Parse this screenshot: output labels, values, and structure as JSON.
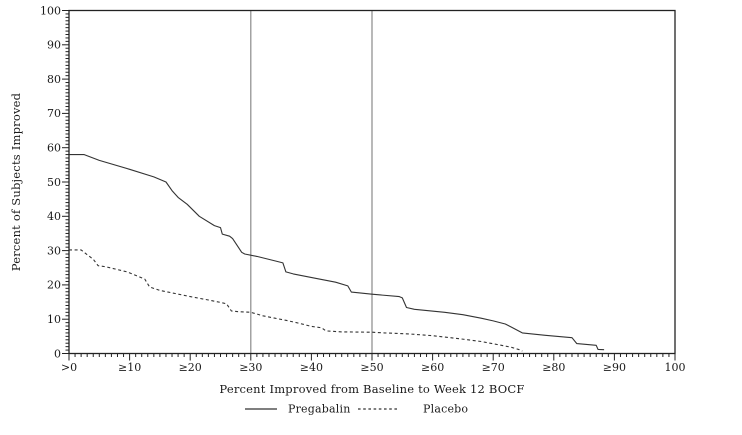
{
  "chart_data": {
    "type": "line",
    "title": "",
    "xlabel": "Percent Improved from Baseline to Week 12 BOCF",
    "ylabel": "Percent of Subjects Improved",
    "xlim": [
      0,
      100
    ],
    "ylim": [
      0,
      100
    ],
    "grid": false,
    "legend_position": "bottom-center",
    "x_tick_values": [
      0,
      10,
      20,
      30,
      40,
      50,
      60,
      70,
      80,
      90,
      100
    ],
    "x_tick_labels": [
      ">0",
      "≥10",
      "≥20",
      "≥30",
      "≥40",
      "≥50",
      "≥60",
      "≥70",
      "≥80",
      "≥90",
      "100"
    ],
    "y_tick_values": [
      0,
      10,
      20,
      30,
      40,
      50,
      60,
      70,
      80,
      90,
      100
    ],
    "minor_tick_step_x": 1,
    "minor_tick_step_y": 1,
    "reference_lines_x": [
      30,
      50
    ],
    "colors": {
      "line": "#333333",
      "reference_line": "#8a8a8a",
      "frame": "#222222",
      "text": "#1a1a1a"
    },
    "series": [
      {
        "name": "Pregabalin",
        "style": "solid",
        "points": [
          [
            0,
            58
          ],
          [
            2.5,
            58
          ],
          [
            5,
            56.3
          ],
          [
            10,
            53.7
          ],
          [
            14,
            51.5
          ],
          [
            16,
            50
          ],
          [
            17,
            47.5
          ],
          [
            18,
            45.5
          ],
          [
            19.5,
            43.5
          ],
          [
            21.5,
            40
          ],
          [
            24,
            37.3
          ],
          [
            25,
            36.7
          ],
          [
            25.3,
            34.8
          ],
          [
            26.5,
            34.2
          ],
          [
            27,
            33.5
          ],
          [
            28.5,
            29.5
          ],
          [
            29,
            29
          ],
          [
            31,
            28.3
          ],
          [
            34,
            27
          ],
          [
            35.3,
            26.4
          ],
          [
            35.8,
            23.8
          ],
          [
            37,
            23.2
          ],
          [
            41,
            21.8
          ],
          [
            44,
            20.8
          ],
          [
            46,
            19.7
          ],
          [
            46.6,
            17.9
          ],
          [
            50,
            17.3
          ],
          [
            54.5,
            16.6
          ],
          [
            55,
            16.2
          ],
          [
            55.7,
            13.4
          ],
          [
            57,
            12.9
          ],
          [
            62,
            12
          ],
          [
            65,
            11.3
          ],
          [
            68,
            10.3
          ],
          [
            70,
            9.5
          ],
          [
            72,
            8.6
          ],
          [
            73,
            7.7
          ],
          [
            74.8,
            6
          ],
          [
            78.6,
            5.3
          ],
          [
            83,
            4.6
          ],
          [
            83.8,
            2.9
          ],
          [
            87,
            2.4
          ],
          [
            87.3,
            1.2
          ],
          [
            88.3,
            1.1
          ]
        ]
      },
      {
        "name": "Placebo",
        "style": "dashed",
        "points": [
          [
            0,
            30.2
          ],
          [
            2,
            30.2
          ],
          [
            3,
            28.8
          ],
          [
            4,
            27.5
          ],
          [
            4.8,
            25.6
          ],
          [
            6,
            25.3
          ],
          [
            9.6,
            23.8
          ],
          [
            12.5,
            21.7
          ],
          [
            13.3,
            19.4
          ],
          [
            15,
            18.4
          ],
          [
            17.5,
            17.5
          ],
          [
            20,
            16.6
          ],
          [
            23,
            15.6
          ],
          [
            25,
            14.9
          ],
          [
            26,
            14.5
          ],
          [
            26.8,
            12.4
          ],
          [
            28,
            12.2
          ],
          [
            30,
            12
          ],
          [
            32,
            11
          ],
          [
            34,
            10.3
          ],
          [
            36,
            9.6
          ],
          [
            38,
            8.8
          ],
          [
            40,
            7.9
          ],
          [
            41.7,
            7.5
          ],
          [
            42.4,
            6.6
          ],
          [
            45,
            6.3
          ],
          [
            50,
            6.2
          ],
          [
            52,
            6
          ],
          [
            56,
            5.7
          ],
          [
            60,
            5.2
          ],
          [
            64,
            4.4
          ],
          [
            68,
            3.5
          ],
          [
            71,
            2.5
          ],
          [
            73,
            1.8
          ],
          [
            74.3,
            1.1
          ],
          [
            74.8,
            0.7
          ]
        ]
      }
    ]
  }
}
